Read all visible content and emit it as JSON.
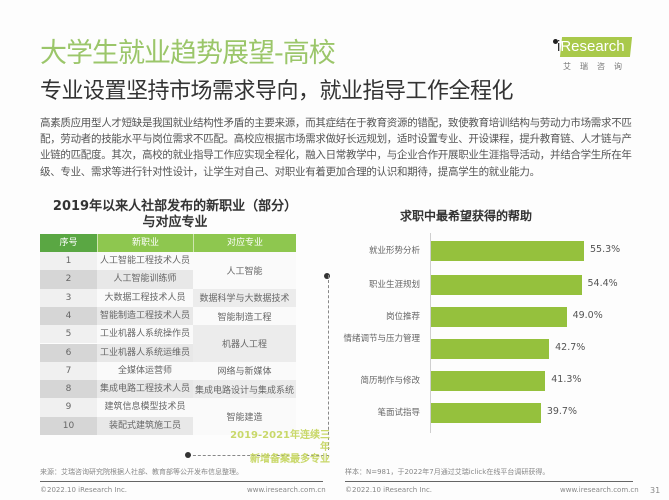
{
  "header": {
    "title": "大学生就业趋势展望-高校",
    "subtitle": "专业设置坚持市场需求导向，就业指导工作全程化",
    "logo": {
      "brand_i": "i",
      "brand_rest": "Research",
      "cn": "艾瑞咨询"
    }
  },
  "body_text": "高素质应用型人才短缺是我国就业结构性矛盾的主要来源，而其症结在于教育资源的错配，致使教育培训结构与劳动力市场需求不匹配，劳动者的技能水平与岗位需求不匹配。高校应根据市场需求做好长远规划，适时设置专业、开设课程，提升教育链、人才链与产业链的匹配度。其次，高校的就业指导工作应实现全程化，融入日常教学中，与企业合作开展职业生涯指导活动，并结合学生所在年级、专业、需求等进行针对性设计，让学生对自己、对职业有着更加合理的认识和期待，提高学生的就业能力。",
  "table": {
    "title_line1": "2019年以来人社部发布的新职业（部分）",
    "title_line2": "与对应专业",
    "headers": [
      "序号",
      "新职业",
      "对应专业"
    ],
    "rows": [
      {
        "no": "1",
        "job": "人工智能工程技术人员"
      },
      {
        "no": "2",
        "job": "人工智能训练师"
      },
      {
        "no": "3",
        "job": "大数据工程技术人员"
      },
      {
        "no": "4",
        "job": "智能制造工程技术人员"
      },
      {
        "no": "5",
        "job": "工业机器人系统操作员"
      },
      {
        "no": "6",
        "job": "工业机器人系统运维员"
      },
      {
        "no": "7",
        "job": "全媒体运营师"
      },
      {
        "no": "8",
        "job": "集成电路工程技术人员"
      },
      {
        "no": "9",
        "job": "建筑信息模型技术员"
      },
      {
        "no": "10",
        "job": "装配式建筑施工员"
      }
    ],
    "majors": [
      {
        "label": "人工智能",
        "rows": [
          1,
          2
        ]
      },
      {
        "label": "数据科学与大数据技术",
        "rows": [
          3
        ]
      },
      {
        "label": "智能制造工程",
        "rows": [
          4
        ]
      },
      {
        "label": "机器人工程",
        "rows": [
          5,
          6
        ]
      },
      {
        "label": "网络与新媒体",
        "rows": [
          7
        ]
      },
      {
        "label": "集成电路设计与集成系统",
        "rows": [
          8
        ]
      },
      {
        "label": "智能建造",
        "rows": [
          9,
          10
        ]
      }
    ],
    "note_line1": "2019-2021年连续三年",
    "note_line2": "新增备案最多专业"
  },
  "chart_data": {
    "type": "bar",
    "orientation": "horizontal",
    "title": "求职中最希望获得的帮助",
    "categories": [
      "就业形势分析",
      "职业生涯规划",
      "岗位推荐",
      "情绪调节与压力管理",
      "简历制作与修改",
      "笔面试指导"
    ],
    "values": [
      55.3,
      54.4,
      49.0,
      42.7,
      41.3,
      39.7
    ],
    "value_labels": [
      "55.3%",
      "54.4%",
      "49.0%",
      "42.7%",
      "41.3%",
      "39.7%"
    ],
    "unit": "%",
    "xlabel": "",
    "ylabel": "",
    "grid": false,
    "legend": null,
    "bar_color": "#95c13d"
  },
  "footer": {
    "left_source": "来源：艾瑞咨询研究院根据人社部、教育部等公开发布信息整理。",
    "right_source": "样本：N=981，于2022年7月通过艾瑞iclick在线平台调研获得。",
    "left_copyright": "©2022.10 iResearch Inc.",
    "left_url": "www.iresearch.com.cn",
    "right_copyright": "©2022.10 iResearch Inc.",
    "right_url": "www.iresearch.com.cn",
    "page_number": "31"
  },
  "colors": {
    "title_green": "#9bc66a",
    "header_dark_green": "#5aa743",
    "header_light_green": "#8ec74f",
    "bar_green": "#95c13d",
    "note_yellow_green": "#c9d86a"
  }
}
